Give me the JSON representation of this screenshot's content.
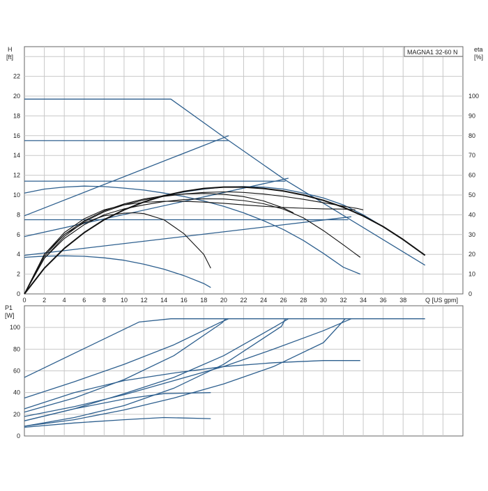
{
  "colors": {
    "grid": "#c8c8c8",
    "frame": "#666666",
    "blue": "#2d5f8e",
    "black": "#111111",
    "text": "#222222"
  },
  "legend": {
    "model": "MAGNA1 32-60 N"
  },
  "chart_data": [
    {
      "type": "line",
      "ylabel_top": "H",
      "ylabel_unit": "[ft]",
      "y2label_top": "eta",
      "y2label_unit": "[%]",
      "xlabel": "Q [US gpm]",
      "xlim": [
        0,
        44
      ],
      "ylim": [
        0,
        25
      ],
      "y2lim": [
        0,
        125
      ],
      "x_ticks": [
        0,
        2,
        4,
        6,
        8,
        10,
        12,
        14,
        16,
        18,
        20,
        22,
        24,
        26,
        28,
        30,
        32,
        34,
        36,
        38
      ],
      "y_ticks": [
        0,
        2,
        4,
        6,
        8,
        10,
        12,
        14,
        16,
        18,
        20,
        22
      ],
      "y2_ticks": [
        0,
        10,
        20,
        30,
        40,
        50,
        60,
        70,
        80,
        90,
        100
      ],
      "grid": true,
      "head_series": [
        {
          "x": [
            0,
            14.7,
            20.5,
            26.2,
            40.2
          ],
          "y": [
            19.7,
            19.7,
            15.5,
            11.5,
            2.9
          ]
        },
        {
          "x": [
            0,
            20.5
          ],
          "y": [
            15.5,
            15.5
          ]
        },
        {
          "x": [
            0,
            26.2
          ],
          "y": [
            11.4,
            11.4
          ]
        },
        {
          "x": [
            0,
            32.5
          ],
          "y": [
            7.5,
            7.5
          ]
        },
        {
          "x": [
            0,
            20.5
          ],
          "y": [
            7.9,
            16.0
          ]
        },
        {
          "x": [
            0,
            26.5
          ],
          "y": [
            5.8,
            11.7
          ]
        },
        {
          "x": [
            0,
            32.8
          ],
          "y": [
            3.9,
            7.8
          ]
        },
        {
          "x": [
            0,
            2,
            4,
            6,
            8,
            10,
            12,
            14,
            16,
            18,
            20,
            22,
            24,
            26,
            28,
            30,
            32,
            33.7
          ],
          "y": [
            10.2,
            10.6,
            10.8,
            10.9,
            10.85,
            10.7,
            10.5,
            10.2,
            9.85,
            9.4,
            8.85,
            8.2,
            7.4,
            6.5,
            5.4,
            4.1,
            2.7,
            2.0
          ]
        },
        {
          "x": [
            0,
            2,
            4,
            6,
            8,
            10,
            12,
            14,
            16,
            18,
            18.7
          ],
          "y": [
            3.7,
            3.82,
            3.85,
            3.8,
            3.65,
            3.4,
            3.0,
            2.5,
            1.85,
            1.05,
            0.65
          ]
        },
        {
          "x": [
            0,
            2,
            4,
            6,
            8,
            10,
            12,
            14,
            16,
            18,
            20,
            22,
            24,
            26,
            28,
            30,
            32,
            34,
            36,
            38,
            40.2
          ],
          "y": [
            0,
            2.6,
            4.6,
            6.2,
            7.5,
            8.5,
            9.3,
            9.9,
            10.3,
            10.6,
            10.8,
            10.85,
            10.8,
            10.6,
            10.2,
            9.7,
            9.0,
            8.0,
            6.8,
            5.5,
            3.9
          ]
        }
      ],
      "eta_series": [
        {
          "x": [
            0,
            2,
            4,
            6,
            8,
            10,
            11,
            12,
            14,
            16,
            18,
            18.7
          ],
          "y": [
            0,
            20,
            30,
            36,
            39.5,
            40.8,
            41,
            40.6,
            37.5,
            30.5,
            20,
            13
          ]
        },
        {
          "x": [
            0,
            2,
            4,
            6,
            8,
            10,
            12,
            14,
            16,
            18,
            20,
            22,
            24,
            26,
            28,
            30,
            32,
            33.7
          ],
          "y": [
            0,
            18,
            28,
            35,
            40,
            43,
            45,
            46.7,
            47.7,
            48.1,
            48,
            47.2,
            45.6,
            42.8,
            38.4,
            32,
            24.8,
            18.5
          ]
        },
        {
          "x": [
            0,
            2,
            4,
            6,
            8,
            10,
            12,
            14,
            16,
            18,
            20,
            21,
            22,
            24,
            26,
            28,
            30,
            32,
            33.5,
            34
          ],
          "y": [
            0,
            18,
            29,
            36.5,
            41.5,
            45,
            47.5,
            49.3,
            50.5,
            51.3,
            51.6,
            51.5,
            51.3,
            50.5,
            49.3,
            47.8,
            46.1,
            44.4,
            43.1,
            42.5
          ]
        },
        {
          "x": [
            0,
            2,
            4,
            6,
            8,
            10,
            12,
            14,
            16,
            18,
            20,
            22,
            24,
            26,
            27
          ],
          "y": [
            0,
            19,
            30,
            37,
            42,
            45.5,
            48,
            49.6,
            50.5,
            50.8,
            50.4,
            49.2,
            47,
            43.4,
            41
          ]
        },
        {
          "x": [
            0,
            2,
            4,
            6,
            8,
            10,
            12,
            14,
            16,
            18,
            20,
            22,
            24,
            26,
            28,
            30,
            32,
            33.2
          ],
          "y": [
            0,
            20,
            31,
            38,
            42.5,
            45,
            46.3,
            46.8,
            46.8,
            46.4,
            45.8,
            45,
            44.3,
            43.7,
            43.3,
            43,
            42.9,
            42.5
          ]
        },
        {
          "x": [
            0,
            2,
            4,
            6,
            8,
            10,
            12,
            14,
            16,
            18,
            20,
            22,
            24,
            26,
            28,
            30,
            32,
            34,
            36,
            38,
            40.2
          ],
          "y": [
            0,
            13,
            23,
            31,
            37.5,
            42.5,
            46.5,
            49.6,
            51.8,
            53.3,
            54,
            54,
            53.3,
            52,
            50,
            47.3,
            43.8,
            39.4,
            34,
            27.5,
            19.5
          ]
        }
      ]
    },
    {
      "type": "line",
      "ylabel_top": "P1",
      "ylabel_unit": "[W]",
      "xlim": [
        0,
        44
      ],
      "ylim": [
        0,
        120
      ],
      "x_ticks": [
        0,
        2,
        4,
        6,
        8,
        10,
        12,
        14,
        16,
        18,
        20,
        22,
        24,
        26,
        28,
        30,
        32,
        34,
        36,
        38
      ],
      "y_ticks": [
        0,
        20,
        40,
        60,
        80,
        100
      ],
      "grid": true,
      "series": [
        {
          "x": [
            0,
            11.5,
            14.7,
            40.2
          ],
          "y": [
            54,
            105,
            108,
            108
          ]
        },
        {
          "x": [
            0,
            5,
            10,
            15,
            19.5,
            20.5
          ],
          "y": [
            35,
            50,
            66,
            84,
            104,
            108
          ]
        },
        {
          "x": [
            0,
            5,
            10,
            15,
            19.8,
            20.2
          ],
          "y": [
            22,
            35,
            52,
            74,
            104,
            108
          ]
        },
        {
          "x": [
            0,
            5,
            10,
            15,
            20,
            25,
            26.5
          ],
          "y": [
            14,
            25,
            39,
            54,
            74,
            100,
            108
          ]
        },
        {
          "x": [
            0,
            5,
            10,
            15,
            20,
            25.8,
            26.2
          ],
          "y": [
            9,
            17,
            28,
            44,
            66,
            101,
            108
          ]
        },
        {
          "x": [
            0,
            5,
            10,
            15,
            20,
            25,
            30,
            32.8
          ],
          "y": [
            18,
            27,
            38,
            51,
            64,
            80,
            97,
            108
          ]
        },
        {
          "x": [
            0,
            5,
            10,
            15,
            20,
            25,
            30,
            32.2
          ],
          "y": [
            9,
            15,
            24,
            35,
            48,
            64,
            86,
            108
          ]
        },
        {
          "x": [
            0,
            5,
            10,
            15,
            20,
            25,
            30,
            33.7
          ],
          "y": [
            25,
            40,
            51,
            58,
            64,
            67.5,
            69.5,
            69.5
          ]
        },
        {
          "x": [
            0,
            5,
            10,
            14,
            18.7
          ],
          "y": [
            14,
            25,
            34,
            39,
            40
          ]
        },
        {
          "x": [
            0,
            5,
            10,
            14,
            18.7
          ],
          "y": [
            8,
            12,
            15,
            17,
            16
          ]
        }
      ]
    }
  ]
}
